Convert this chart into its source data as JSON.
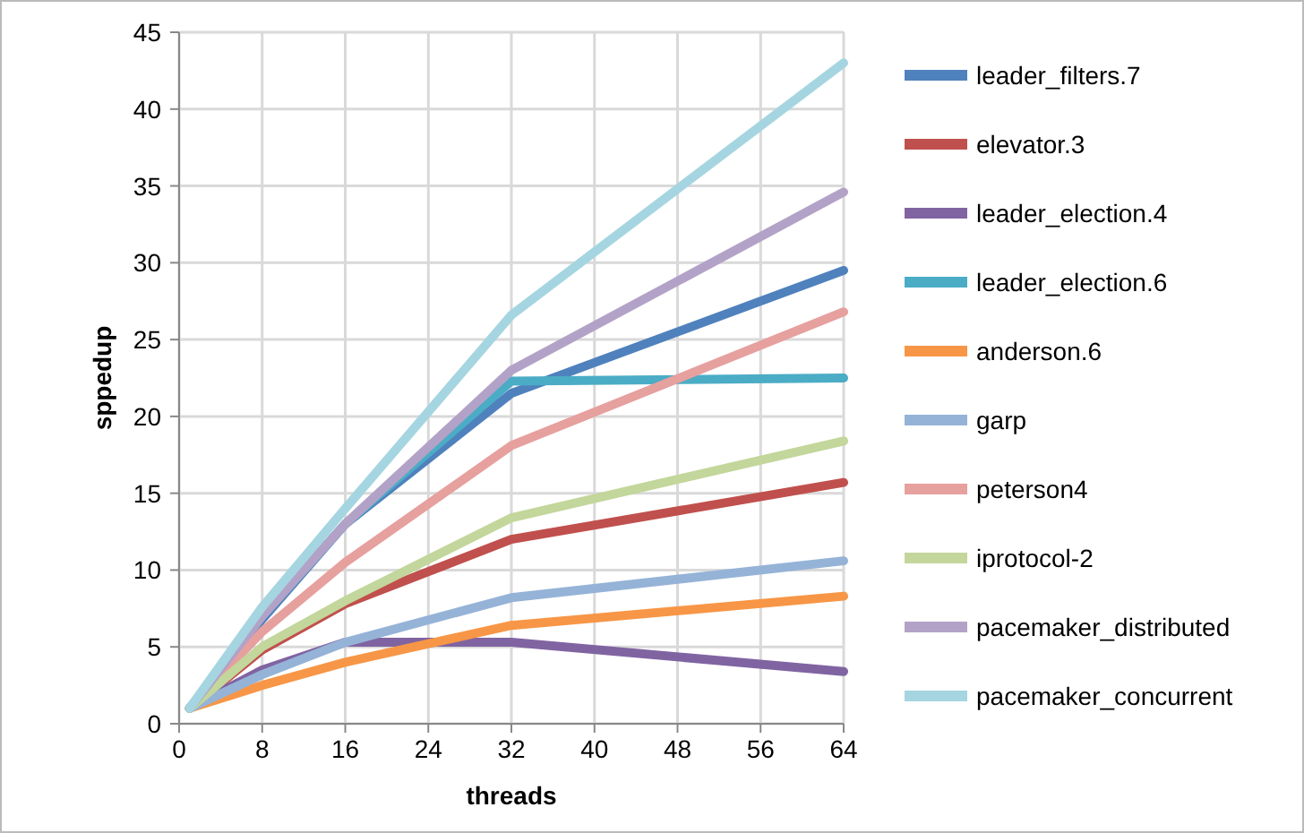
{
  "chart_data": {
    "type": "line",
    "xlabel": "threads",
    "ylabel": "sppedup",
    "x": [
      1,
      8,
      16,
      32,
      64
    ],
    "xlim": [
      0,
      64
    ],
    "xticks": [
      0,
      8,
      16,
      24,
      32,
      40,
      48,
      56,
      64
    ],
    "ylim": [
      0,
      45
    ],
    "yticks": [
      0,
      5,
      10,
      15,
      20,
      25,
      30,
      35,
      40,
      45
    ],
    "grid": true,
    "legend": "right",
    "marker": "none",
    "line_style": "solid",
    "series": [
      {
        "name": "leader_filters.7",
        "color": "#4f81bd",
        "values": [
          1,
          6.8,
          13,
          21.5,
          29.5
        ]
      },
      {
        "name": "elevator.3",
        "color": "#c0504d",
        "values": [
          1,
          4.8,
          7.8,
          12,
          15.7
        ]
      },
      {
        "name": "leader_election.4",
        "color": "#8064a2",
        "values": [
          1,
          3.5,
          5.3,
          5.3,
          3.4
        ]
      },
      {
        "name": "leader_election.6",
        "color": "#4bacc6",
        "values": [
          1,
          7,
          13,
          22.3,
          22.5
        ]
      },
      {
        "name": "anderson.6",
        "color": "#f79646",
        "values": [
          1,
          2.5,
          4,
          6.4,
          8.3
        ]
      },
      {
        "name": "garp",
        "color": "#95b3d7",
        "values": [
          1,
          3.2,
          5.3,
          8.2,
          10.6
        ]
      },
      {
        "name": "peterson4",
        "color": "#e6a09e",
        "values": [
          1,
          6,
          10.5,
          18.1,
          26.8
        ]
      },
      {
        "name": "iprotocol-2",
        "color": "#c3d69b",
        "values": [
          1,
          5,
          8,
          13.4,
          18.4
        ]
      },
      {
        "name": "pacemaker_distributed",
        "color": "#b3a2c7",
        "values": [
          1,
          7,
          13,
          23,
          34.6
        ]
      },
      {
        "name": "pacemaker_concurrent",
        "color": "#a5d5e0",
        "values": [
          1,
          7.6,
          14,
          26.6,
          43
        ]
      }
    ]
  }
}
